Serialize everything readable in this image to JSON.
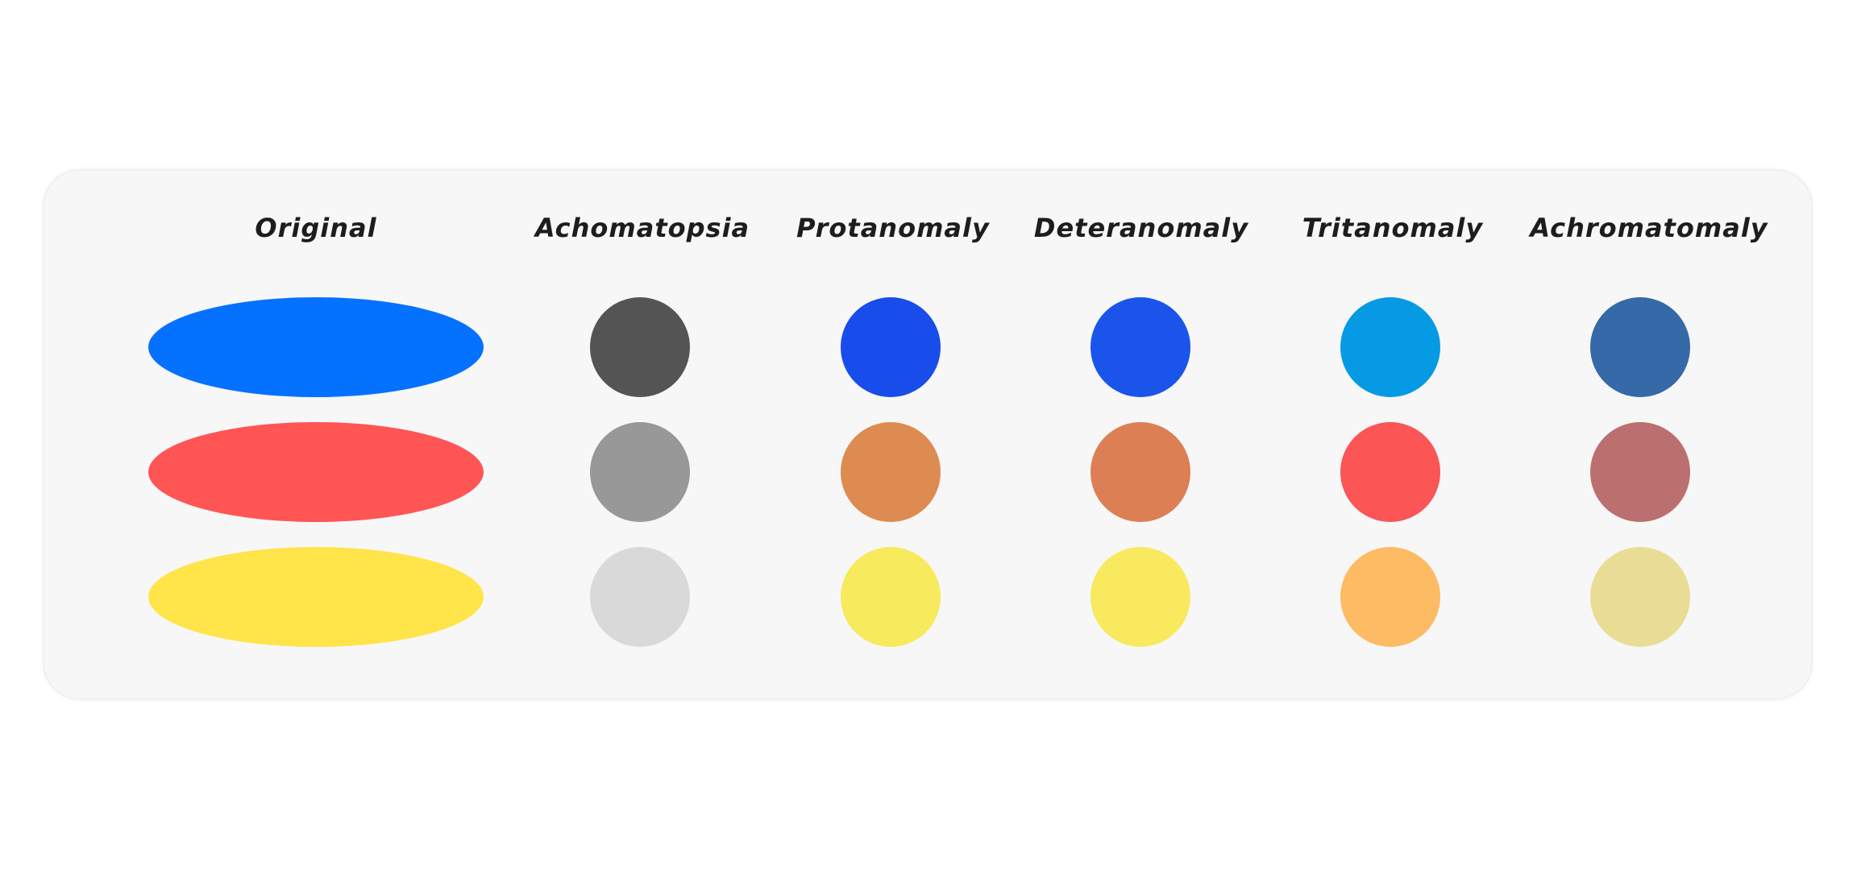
{
  "headers": {
    "original": "Original",
    "achomatopsia": "Achomatopsia",
    "protanomaly": "Protanomaly",
    "deteranomaly": "Deteranomaly",
    "tritanomaly": "Tritanomaly",
    "achromatomaly": "Achromatomaly"
  },
  "colors": {
    "original": [
      "#0571ff",
      "#ff5555",
      "#ffe44a"
    ],
    "achomatopsia": [
      "#545454",
      "#989898",
      "#d9d9d9"
    ],
    "protanomaly": [
      "#184ceb",
      "#dd8b51",
      "#f7ea5c"
    ],
    "deteranomaly": [
      "#1a54eb",
      "#dc7f55",
      "#f9e95f"
    ],
    "tritanomaly": [
      "#069ae5",
      "#fb5556",
      "#fdbc63"
    ],
    "achromatomaly": [
      "#3569a8",
      "#bb6f6f",
      "#e9dd96"
    ]
  }
}
